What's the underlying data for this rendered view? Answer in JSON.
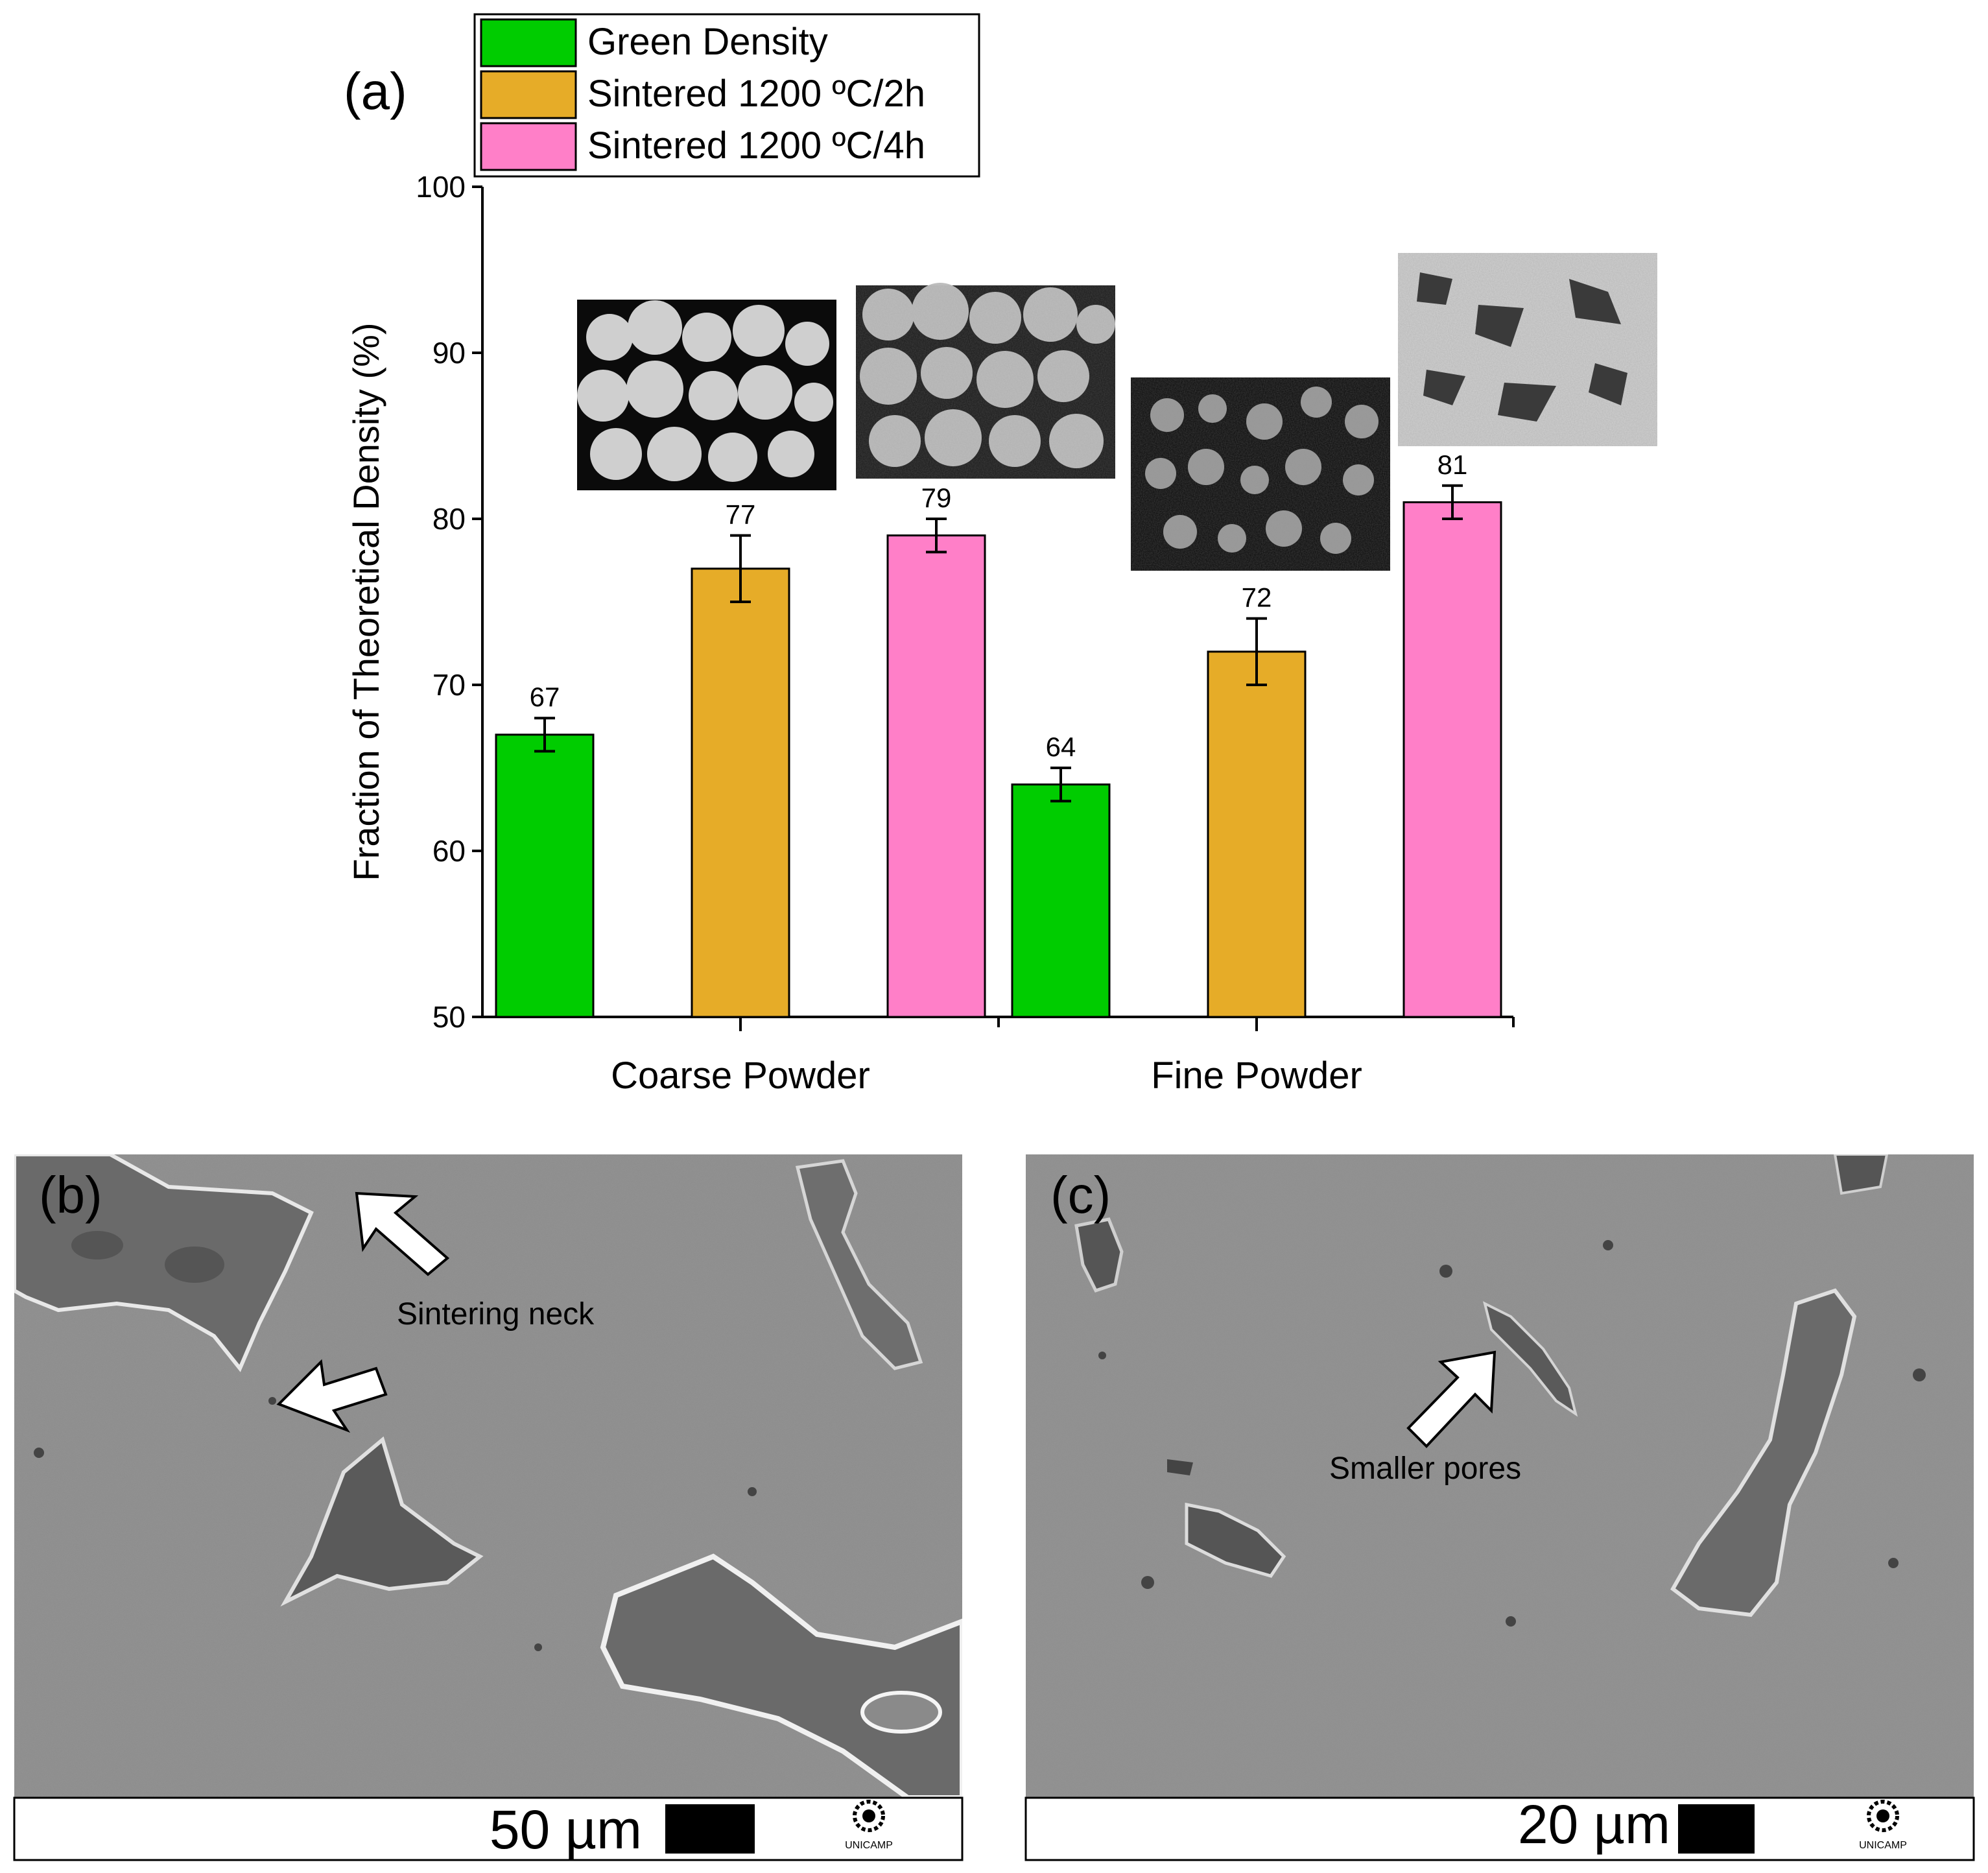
{
  "figure": {
    "panels": {
      "a": {
        "label": "(a)"
      },
      "b": {
        "label": "(b)",
        "annotation": "Sintering neck",
        "scale_bar": "50 µm",
        "logo_text": "UNICAMP"
      },
      "c": {
        "label": "(c)",
        "annotation": "Smaller pores",
        "scale_bar": "20 µm",
        "logo_text": "UNICAMP"
      }
    }
  },
  "colors": {
    "green": "#00cc00",
    "gold": "#e6ac28",
    "pink": "#ff7fc8",
    "sem_background": "#8c8c8c"
  },
  "chart_data": {
    "type": "bar",
    "title": "",
    "xlabel": "",
    "ylabel": "Fraction of Theoretical Density (%)",
    "ylim": [
      50,
      100
    ],
    "yticks": [
      50,
      60,
      70,
      80,
      90,
      100
    ],
    "categories": [
      "Coarse Powder",
      "Fine Powder"
    ],
    "legend_position": "top-left",
    "series": [
      {
        "name": "Green Density",
        "color": "#00cc00",
        "values": [
          67,
          64
        ],
        "errors": [
          1,
          1
        ]
      },
      {
        "name": "Sintered 1200 ºC/2h",
        "color": "#e6ac28",
        "values": [
          77,
          72
        ],
        "errors": [
          2,
          2
        ]
      },
      {
        "name": "Sintered 1200 ºC/4h",
        "color": "#ff7fc8",
        "values": [
          79,
          81
        ],
        "errors": [
          1,
          1
        ]
      }
    ],
    "data_labels": [
      [
        "67",
        "64"
      ],
      [
        "77",
        "72"
      ],
      [
        "79",
        "81"
      ]
    ],
    "inset_micrographs": 4
  }
}
